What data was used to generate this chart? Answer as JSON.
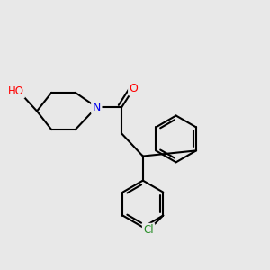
{
  "background_color": "#e8e8e8",
  "bond_color": "#000000",
  "bond_width": 1.5,
  "atom_colors": {
    "N": "#0000ee",
    "O_carbonyl": "#ff0000",
    "O_hydroxyl": "#ff0000",
    "Cl": "#228B22",
    "C": "#000000"
  },
  "figsize": [
    3.0,
    3.0
  ],
  "dpi": 100,
  "xlim": [
    0,
    10
  ],
  "ylim": [
    0,
    10
  ]
}
